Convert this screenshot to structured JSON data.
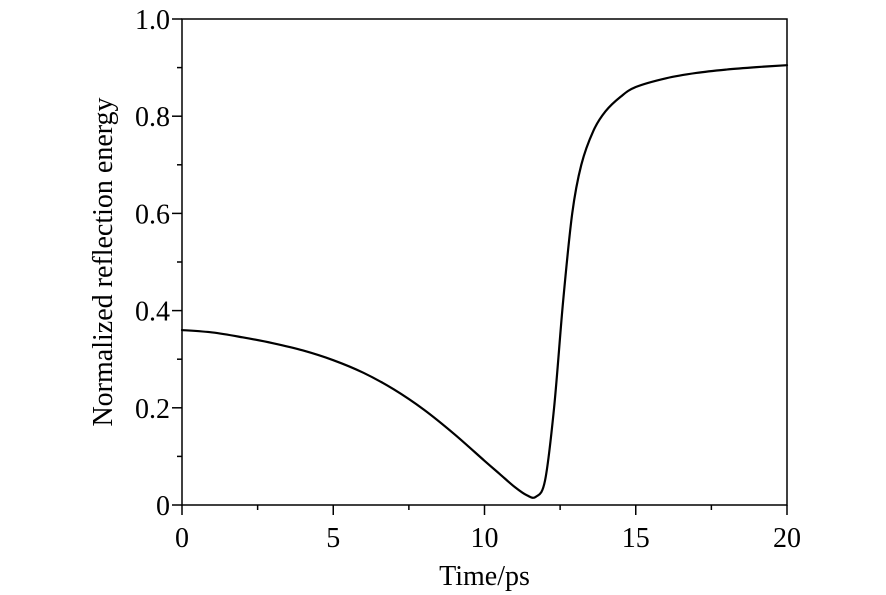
{
  "chart_data": {
    "type": "line",
    "title": "",
    "xlabel": "Time/ps",
    "ylabel": "Normalized reflection energy",
    "xlim": [
      0,
      20
    ],
    "ylim": [
      0,
      1.0
    ],
    "x_ticks": [
      0,
      5,
      10,
      15,
      20
    ],
    "x_tick_labels": [
      "0",
      "5",
      "10",
      "15",
      "20"
    ],
    "y_ticks": [
      0,
      0.2,
      0.4,
      0.6,
      0.8,
      1.0
    ],
    "y_tick_labels": [
      "0",
      "0.2",
      "0.4",
      "0.6",
      "0.8",
      "1.0"
    ],
    "grid": false,
    "legend": "none",
    "line_color": "#000000",
    "series": [
      {
        "x": [
          0,
          1,
          2,
          3,
          4,
          5,
          6,
          7,
          8,
          9,
          10,
          10.5,
          11,
          11.4,
          11.7,
          12.0,
          12.3,
          12.6,
          12.9,
          13.2,
          13.6,
          14.0,
          14.5,
          15,
          16,
          17,
          18,
          19,
          20
        ],
        "y": [
          0.36,
          0.355,
          0.345,
          0.333,
          0.318,
          0.298,
          0.272,
          0.238,
          0.196,
          0.146,
          0.091,
          0.064,
          0.037,
          0.02,
          0.017,
          0.05,
          0.2,
          0.42,
          0.6,
          0.7,
          0.77,
          0.81,
          0.84,
          0.86,
          0.878,
          0.889,
          0.896,
          0.901,
          0.905
        ]
      }
    ]
  }
}
